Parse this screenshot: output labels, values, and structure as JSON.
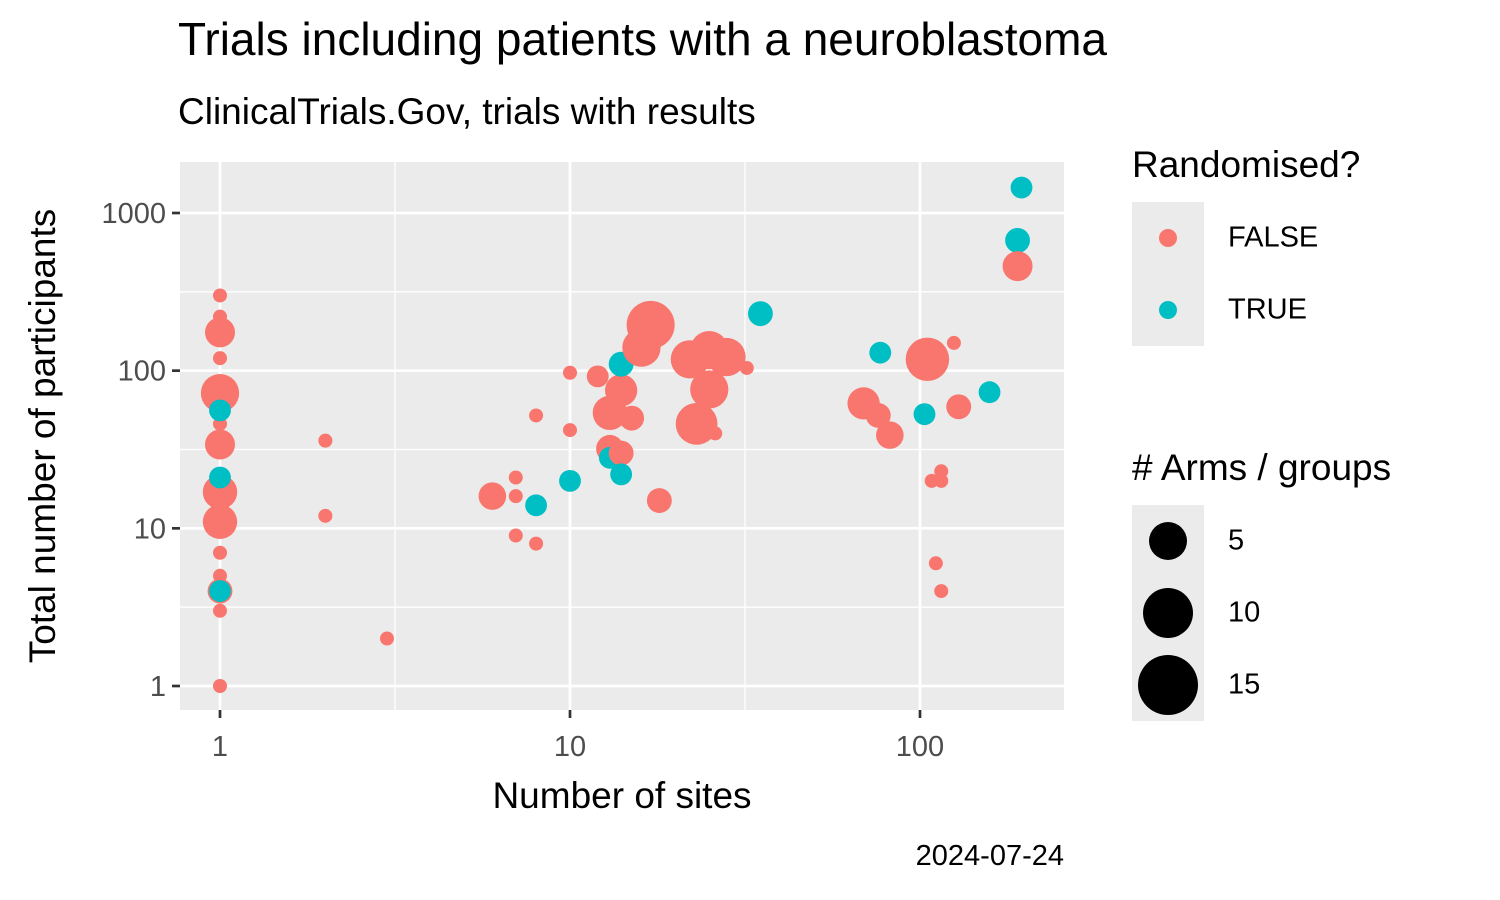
{
  "header": {
    "title": "Trials including patients with a neuroblastoma",
    "subtitle": "ClinicalTrials.Gov, trials with results",
    "caption": "2024-07-24"
  },
  "legend_color": {
    "title": "Randomised?",
    "items": [
      {
        "label": "FALSE",
        "color": "#F8766D"
      },
      {
        "label": "TRUE",
        "color": "#00BFC4"
      }
    ]
  },
  "legend_size": {
    "title": "# Arms / groups",
    "items": [
      {
        "label": "5",
        "value": 5
      },
      {
        "label": "10",
        "value": 10
      },
      {
        "label": "15",
        "value": 15
      }
    ]
  },
  "chart_data": {
    "type": "scatter",
    "xlabel": "Number of sites",
    "ylabel": "Total number of participants",
    "x_scale": "log10",
    "y_scale": "log10",
    "xlim": [
      0.9,
      250
    ],
    "ylim": [
      0.7,
      2200
    ],
    "x_ticks": [
      {
        "value": 1,
        "label": "1"
      },
      {
        "value": 10,
        "label": "10"
      },
      {
        "value": 100,
        "label": "100"
      }
    ],
    "y_ticks": [
      {
        "value": 1,
        "label": "1"
      },
      {
        "value": 10,
        "label": "10"
      },
      {
        "value": 100,
        "label": "100"
      },
      {
        "value": 1000,
        "label": "1000"
      }
    ],
    "grid": true,
    "colors": {
      "FALSE": "#F8766D",
      "TRUE": "#00BFC4",
      "panel": "#EBEBEB",
      "grid": "#FFFFFF"
    },
    "points": [
      {
        "x": 1,
        "y": 300,
        "arms": 1,
        "randomised": "FALSE"
      },
      {
        "x": 1,
        "y": 220,
        "arms": 1,
        "randomised": "FALSE"
      },
      {
        "x": 1,
        "y": 175,
        "arms": 6,
        "randomised": "FALSE"
      },
      {
        "x": 1,
        "y": 120,
        "arms": 1,
        "randomised": "FALSE"
      },
      {
        "x": 1,
        "y": 72,
        "arms": 10,
        "randomised": "FALSE"
      },
      {
        "x": 1,
        "y": 46,
        "arms": 1,
        "randomised": "FALSE"
      },
      {
        "x": 1,
        "y": 34,
        "arms": 6,
        "randomised": "FALSE"
      },
      {
        "x": 1,
        "y": 17,
        "arms": 8,
        "randomised": "FALSE"
      },
      {
        "x": 1,
        "y": 11,
        "arms": 8,
        "randomised": "FALSE"
      },
      {
        "x": 1,
        "y": 7,
        "arms": 1,
        "randomised": "FALSE"
      },
      {
        "x": 1,
        "y": 5,
        "arms": 1,
        "randomised": "FALSE"
      },
      {
        "x": 1,
        "y": 4,
        "arms": 4,
        "randomised": "FALSE"
      },
      {
        "x": 1,
        "y": 3,
        "arms": 1,
        "randomised": "FALSE"
      },
      {
        "x": 1,
        "y": 1,
        "arms": 1,
        "randomised": "FALSE"
      },
      {
        "x": 1,
        "y": 56,
        "arms": 3,
        "randomised": "TRUE"
      },
      {
        "x": 1,
        "y": 21,
        "arms": 3,
        "randomised": "TRUE"
      },
      {
        "x": 1,
        "y": 4,
        "arms": 3,
        "randomised": "TRUE"
      },
      {
        "x": 2,
        "y": 36,
        "arms": 1,
        "randomised": "FALSE"
      },
      {
        "x": 2,
        "y": 12,
        "arms": 1,
        "randomised": "FALSE"
      },
      {
        "x": 3,
        "y": 2,
        "arms": 1,
        "randomised": "FALSE"
      },
      {
        "x": 6,
        "y": 16,
        "arms": 5,
        "randomised": "FALSE"
      },
      {
        "x": 7,
        "y": 21,
        "arms": 1,
        "randomised": "FALSE"
      },
      {
        "x": 7,
        "y": 16,
        "arms": 1,
        "randomised": "FALSE"
      },
      {
        "x": 7,
        "y": 9,
        "arms": 1,
        "randomised": "FALSE"
      },
      {
        "x": 8,
        "y": 52,
        "arms": 1,
        "randomised": "FALSE"
      },
      {
        "x": 8,
        "y": 8,
        "arms": 1,
        "randomised": "FALSE"
      },
      {
        "x": 8,
        "y": 14,
        "arms": 3,
        "randomised": "TRUE"
      },
      {
        "x": 10,
        "y": 97,
        "arms": 1,
        "randomised": "FALSE"
      },
      {
        "x": 10,
        "y": 42,
        "arms": 1,
        "randomised": "FALSE"
      },
      {
        "x": 10,
        "y": 20,
        "arms": 3,
        "randomised": "TRUE"
      },
      {
        "x": 12,
        "y": 92,
        "arms": 3,
        "randomised": "FALSE"
      },
      {
        "x": 13,
        "y": 54,
        "arms": 8,
        "randomised": "FALSE"
      },
      {
        "x": 13,
        "y": 32,
        "arms": 5,
        "randomised": "FALSE"
      },
      {
        "x": 13,
        "y": 28,
        "arms": 3,
        "randomised": "TRUE"
      },
      {
        "x": 14,
        "y": 75,
        "arms": 7,
        "randomised": "FALSE"
      },
      {
        "x": 14,
        "y": 30,
        "arms": 4,
        "randomised": "FALSE"
      },
      {
        "x": 14,
        "y": 110,
        "arms": 4,
        "randomised": "TRUE"
      },
      {
        "x": 14,
        "y": 22,
        "arms": 3,
        "randomised": "TRUE"
      },
      {
        "x": 15,
        "y": 50,
        "arms": 4,
        "randomised": "FALSE"
      },
      {
        "x": 16,
        "y": 140,
        "arms": 10,
        "randomised": "FALSE"
      },
      {
        "x": 17,
        "y": 195,
        "arms": 16,
        "randomised": "FALSE"
      },
      {
        "x": 18,
        "y": 15,
        "arms": 4,
        "randomised": "FALSE"
      },
      {
        "x": 22,
        "y": 118,
        "arms": 10,
        "randomised": "FALSE"
      },
      {
        "x": 23,
        "y": 46,
        "arms": 12,
        "randomised": "FALSE"
      },
      {
        "x": 25,
        "y": 135,
        "arms": 10,
        "randomised": "FALSE"
      },
      {
        "x": 25,
        "y": 76,
        "arms": 10,
        "randomised": "FALSE"
      },
      {
        "x": 26,
        "y": 40,
        "arms": 1,
        "randomised": "FALSE"
      },
      {
        "x": 28,
        "y": 122,
        "arms": 10,
        "randomised": "FALSE"
      },
      {
        "x": 32,
        "y": 104,
        "arms": 1,
        "randomised": "FALSE"
      },
      {
        "x": 35,
        "y": 230,
        "arms": 4,
        "randomised": "TRUE"
      },
      {
        "x": 69,
        "y": 62,
        "arms": 7,
        "randomised": "FALSE"
      },
      {
        "x": 76,
        "y": 52,
        "arms": 4,
        "randomised": "FALSE"
      },
      {
        "x": 77,
        "y": 130,
        "arms": 3,
        "randomised": "TRUE"
      },
      {
        "x": 82,
        "y": 39,
        "arms": 5,
        "randomised": "FALSE"
      },
      {
        "x": 103,
        "y": 53,
        "arms": 3,
        "randomised": "TRUE"
      },
      {
        "x": 105,
        "y": 118,
        "arms": 13,
        "randomised": "FALSE"
      },
      {
        "x": 108,
        "y": 20,
        "arms": 1,
        "randomised": "FALSE"
      },
      {
        "x": 111,
        "y": 6,
        "arms": 1,
        "randomised": "FALSE"
      },
      {
        "x": 115,
        "y": 23,
        "arms": 1,
        "randomised": "FALSE"
      },
      {
        "x": 115,
        "y": 20,
        "arms": 1,
        "randomised": "FALSE"
      },
      {
        "x": 115,
        "y": 4,
        "arms": 1,
        "randomised": "FALSE"
      },
      {
        "x": 125,
        "y": 150,
        "arms": 1,
        "randomised": "FALSE"
      },
      {
        "x": 129,
        "y": 59,
        "arms": 4,
        "randomised": "FALSE"
      },
      {
        "x": 158,
        "y": 73,
        "arms": 3,
        "randomised": "TRUE"
      },
      {
        "x": 190,
        "y": 670,
        "arms": 4,
        "randomised": "TRUE"
      },
      {
        "x": 195,
        "y": 1450,
        "arms": 3,
        "randomised": "TRUE"
      },
      {
        "x": 190,
        "y": 460,
        "arms": 6,
        "randomised": "FALSE"
      }
    ]
  }
}
